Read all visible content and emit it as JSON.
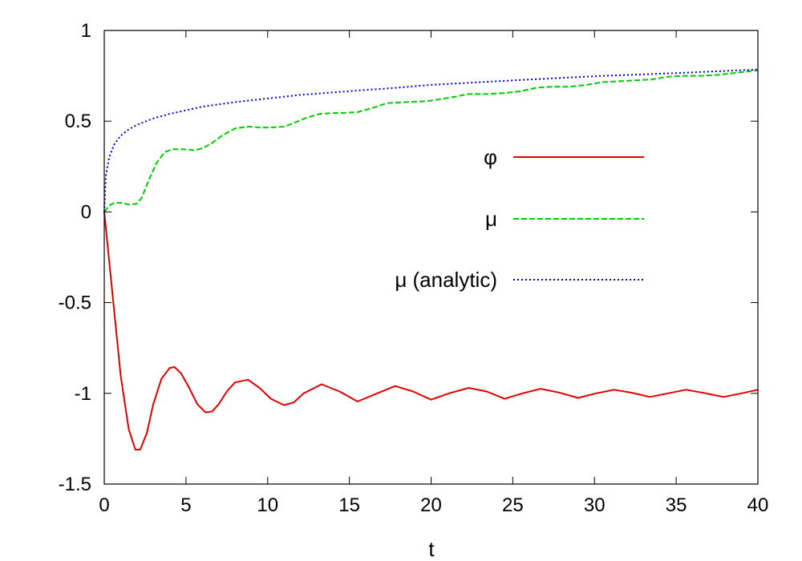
{
  "chart_data": {
    "type": "line",
    "title": "",
    "xlabel": "t",
    "ylabel": "",
    "xlim": [
      0,
      40
    ],
    "ylim": [
      -1.5,
      1
    ],
    "xticks": [
      0,
      5,
      10,
      15,
      20,
      25,
      30,
      35,
      40
    ],
    "xtick_labels": [
      "0",
      "5",
      "10",
      "15",
      "20",
      "25",
      "30",
      "35",
      "40"
    ],
    "yticks": [
      1,
      0.5,
      0,
      -0.5,
      -1,
      -1.5
    ],
    "ytick_labels": [
      "1",
      "0.5",
      "0",
      "-0.5",
      "-1",
      "-1.5"
    ],
    "grid": false,
    "legend_position": "right",
    "series": [
      {
        "name": "φ",
        "color": "#e00000",
        "style": "solid",
        "x": [
          0,
          0.5,
          1,
          1.5,
          1.9,
          2.2,
          2.6,
          3,
          3.5,
          4,
          4.3,
          4.7,
          5.2,
          5.7,
          6.2,
          6.6,
          7,
          7.5,
          8,
          8.8,
          9.5,
          10.2,
          11,
          11.6,
          12.2,
          13.3,
          14.4,
          15.5,
          16.7,
          17.8,
          18.9,
          20,
          21.1,
          22.3,
          23.4,
          24.5,
          25.6,
          26.7,
          27.8,
          29,
          30.1,
          31.2,
          32.3,
          33.4,
          34.5,
          35.6,
          36.7,
          37.9,
          39,
          40
        ],
        "y": [
          0,
          -0.45,
          -0.9,
          -1.2,
          -1.31,
          -1.31,
          -1.22,
          -1.06,
          -0.92,
          -0.86,
          -0.855,
          -0.89,
          -0.97,
          -1.06,
          -1.105,
          -1.1,
          -1.06,
          -0.99,
          -0.94,
          -0.925,
          -0.97,
          -1.03,
          -1.065,
          -1.05,
          -1.0,
          -0.95,
          -0.99,
          -1.045,
          -1.0,
          -0.96,
          -0.99,
          -1.035,
          -1.0,
          -0.97,
          -0.99,
          -1.03,
          -1.0,
          -0.975,
          -0.995,
          -1.025,
          -1.0,
          -0.98,
          -0.997,
          -1.02,
          -1.0,
          -0.98,
          -0.998,
          -1.02,
          -1.0,
          -0.98
        ]
      },
      {
        "name": "μ",
        "color": "#00cc00",
        "style": "dashed",
        "x": [
          0,
          0.3,
          0.6,
          1,
          1.5,
          2,
          2.3,
          2.7,
          3.2,
          3.7,
          4.2,
          4.8,
          5.5,
          6,
          6.6,
          7.2,
          8,
          8.8,
          9.5,
          10.2,
          11,
          11.6,
          12.4,
          13.2,
          14,
          14.6,
          15.5,
          16.5,
          17.3,
          18.5,
          19.7,
          20.5,
          21.5,
          22.3,
          23.5,
          24.5,
          25.5,
          26.5,
          27.5,
          28.5,
          29.5,
          30.5,
          31.5,
          32.5,
          33.5,
          34.5,
          35.5,
          36.5,
          37.5,
          38.5,
          40
        ],
        "y": [
          0,
          0.035,
          0.05,
          0.05,
          0.04,
          0.045,
          0.08,
          0.17,
          0.27,
          0.33,
          0.345,
          0.345,
          0.34,
          0.35,
          0.38,
          0.42,
          0.46,
          0.47,
          0.465,
          0.465,
          0.47,
          0.49,
          0.52,
          0.54,
          0.545,
          0.545,
          0.55,
          0.575,
          0.6,
          0.605,
          0.61,
          0.62,
          0.635,
          0.65,
          0.65,
          0.655,
          0.665,
          0.685,
          0.69,
          0.69,
          0.7,
          0.715,
          0.72,
          0.725,
          0.73,
          0.745,
          0.75,
          0.75,
          0.755,
          0.765,
          0.78
        ]
      },
      {
        "name": "μ (analytic)",
        "color": "#0000dd",
        "style": "dotted",
        "x": [
          0,
          0.1,
          0.3,
          0.6,
          1,
          1.5,
          2,
          3,
          4,
          5,
          6,
          8,
          10,
          12,
          15,
          18,
          20,
          25,
          30,
          35,
          40
        ],
        "y": [
          0,
          0.2,
          0.3,
          0.37,
          0.42,
          0.455,
          0.48,
          0.515,
          0.54,
          0.56,
          0.58,
          0.605,
          0.625,
          0.645,
          0.665,
          0.685,
          0.7,
          0.725,
          0.748,
          0.765,
          0.785
        ]
      }
    ]
  }
}
